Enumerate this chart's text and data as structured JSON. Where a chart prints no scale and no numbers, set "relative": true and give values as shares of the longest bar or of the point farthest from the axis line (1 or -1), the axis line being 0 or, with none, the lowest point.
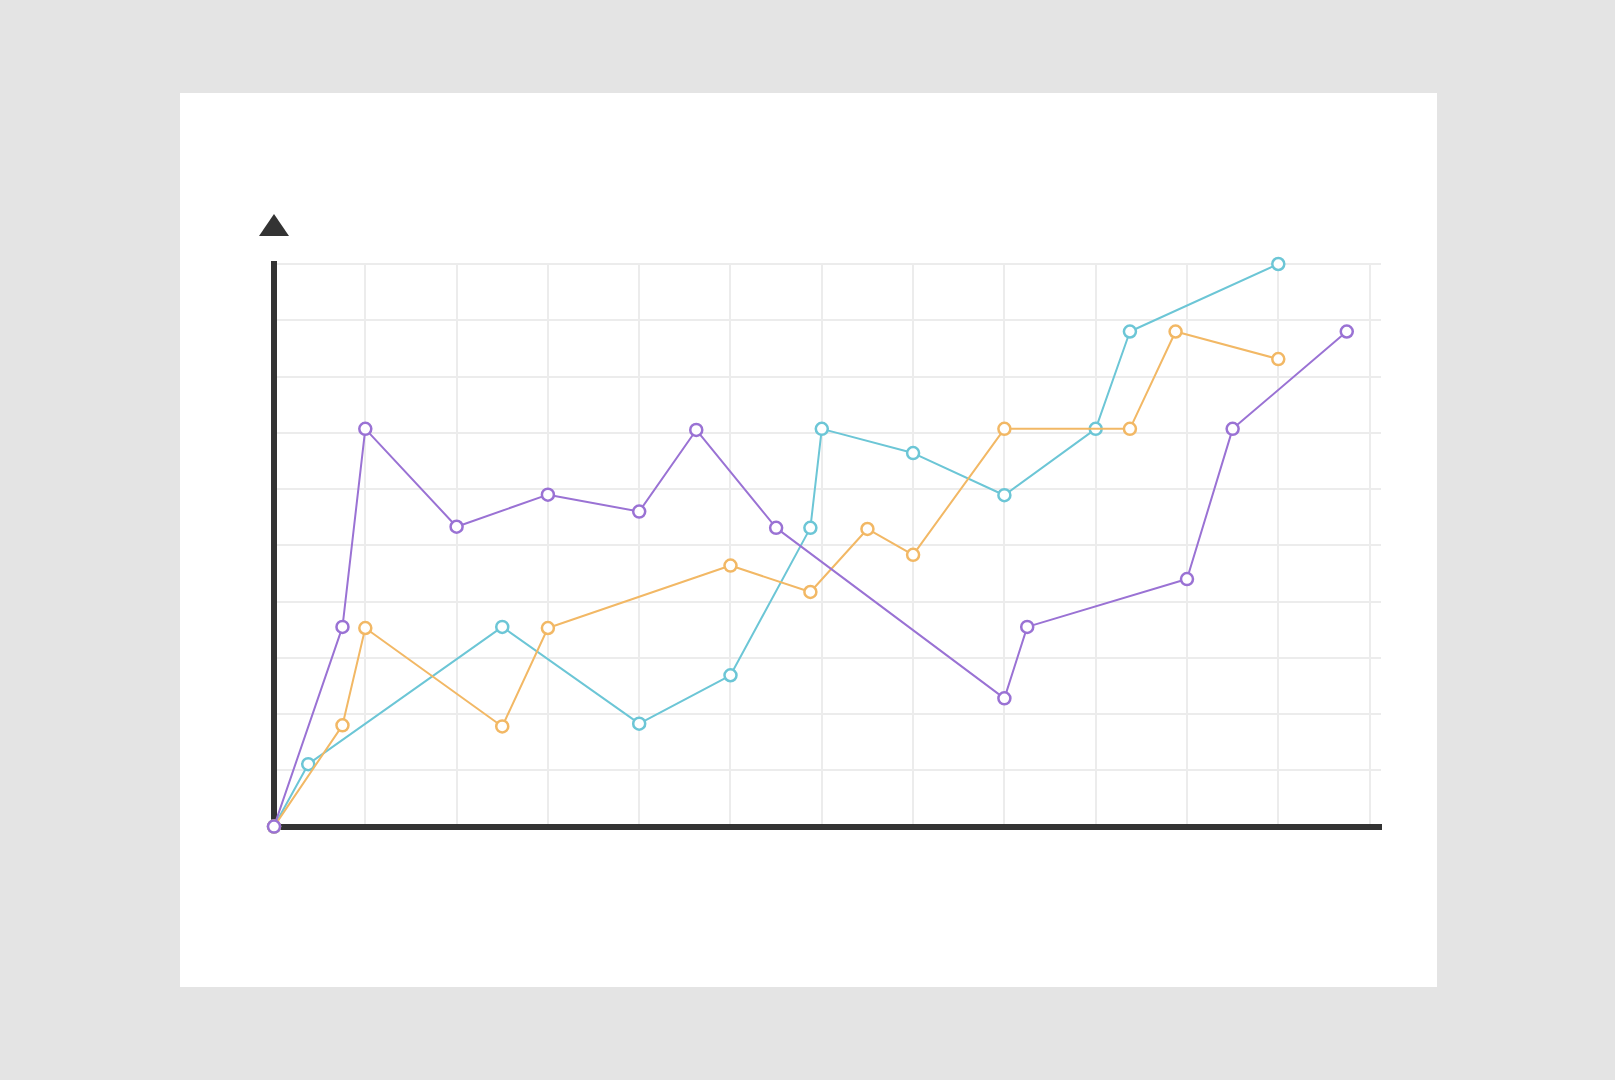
{
  "chart_data": {
    "type": "line",
    "relative": true,
    "grid": true,
    "legend": false,
    "marker": "circle",
    "categories": [
      null,
      null,
      null,
      null,
      null,
      null,
      null,
      null,
      null,
      null,
      null,
      null,
      null,
      null,
      null,
      null,
      null,
      null,
      null,
      null,
      null,
      null,
      null,
      null,
      null,
      null,
      null,
      null,
      null,
      null,
      null,
      null,
      null,
      null,
      null,
      null,
      null,
      null,
      null,
      null,
      null,
      null,
      null,
      null,
      null,
      null,
      null,
      null,
      null,
      null,
      null,
      null,
      null,
      null,
      null,
      null,
      null,
      null,
      null,
      null,
      null,
      null,
      null,
      null,
      null,
      null,
      null,
      null,
      null,
      null,
      null,
      null,
      null,
      null,
      null,
      null,
      null,
      null,
      null,
      null,
      null,
      null,
      null,
      null,
      null,
      null,
      null,
      null,
      null,
      null,
      null,
      null,
      null,
      null,
      null,
      null,
      null,
      null
    ],
    "series": [
      {
        "color": "#9a72d4",
        "values": [
          0,
          null,
          null,
          null,
          null,
          null,
          0.355,
          null,
          0.707,
          null,
          null,
          null,
          null,
          null,
          null,
          null,
          0.533,
          null,
          null,
          null,
          null,
          null,
          null,
          null,
          0.59,
          null,
          null,
          null,
          null,
          null,
          null,
          null,
          0.56,
          null,
          null,
          null,
          null,
          0.705,
          null,
          null,
          null,
          null,
          null,
          null,
          0.531,
          null,
          null,
          null,
          null,
          null,
          null,
          null,
          null,
          null,
          null,
          null,
          null,
          null,
          null,
          null,
          null,
          null,
          null,
          null,
          0.228,
          null,
          0.355,
          null,
          null,
          null,
          null,
          null,
          null,
          null,
          null,
          null,
          null,
          null,
          null,
          null,
          0.44,
          null,
          null,
          null,
          0.707,
          null,
          null,
          null,
          null,
          null,
          null,
          null,
          null,
          null,
          0.88,
          null,
          null,
          null
        ]
      },
      {
        "color": "#f2b865",
        "values": [
          0,
          null,
          null,
          null,
          null,
          null,
          0.18,
          null,
          0.353,
          null,
          null,
          null,
          null,
          null,
          null,
          null,
          null,
          null,
          null,
          null,
          0.178,
          null,
          null,
          null,
          0.353,
          null,
          null,
          null,
          null,
          null,
          null,
          null,
          null,
          null,
          null,
          null,
          null,
          null,
          null,
          null,
          0.464,
          null,
          null,
          null,
          null,
          null,
          null,
          0.417,
          null,
          null,
          null,
          null,
          0.529,
          null,
          null,
          null,
          0.483,
          null,
          null,
          null,
          null,
          null,
          null,
          null,
          0.707,
          null,
          null,
          null,
          null,
          null,
          null,
          null,
          null,
          null,
          null,
          0.707,
          null,
          null,
          null,
          0.88,
          null,
          null,
          null,
          null,
          null,
          null,
          null,
          null,
          0.831,
          null,
          null,
          null,
          null,
          null,
          null,
          null,
          null,
          null
        ]
      },
      {
        "color": "#6cc6d6",
        "values": [
          0,
          null,
          null,
          0.111,
          null,
          null,
          null,
          null,
          null,
          null,
          null,
          null,
          null,
          null,
          null,
          null,
          null,
          null,
          null,
          null,
          0.355,
          null,
          null,
          null,
          null,
          null,
          null,
          null,
          null,
          null,
          null,
          null,
          0.183,
          null,
          null,
          null,
          null,
          null,
          null,
          null,
          0.269,
          null,
          null,
          null,
          null,
          null,
          null,
          0.531,
          0.707,
          null,
          null,
          null,
          null,
          null,
          null,
          null,
          0.664,
          null,
          null,
          null,
          null,
          null,
          null,
          null,
          0.589,
          null,
          null,
          null,
          null,
          null,
          null,
          null,
          0.707,
          null,
          null,
          0.88,
          null,
          null,
          null,
          null,
          null,
          null,
          null,
          null,
          null,
          null,
          null,
          null,
          1,
          null,
          null,
          null,
          null,
          null,
          null,
          null,
          null,
          null
        ]
      }
    ]
  }
}
